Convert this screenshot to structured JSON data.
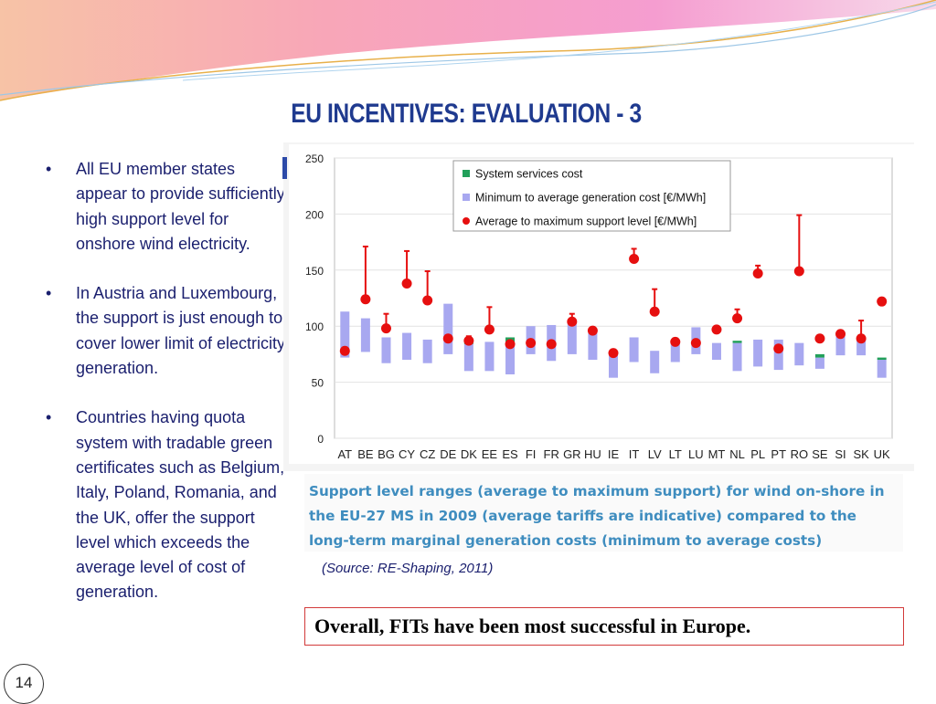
{
  "slide": {
    "title": "EU INCENTIVES: EVALUATION - 3",
    "bullets": [
      "All EU member states appear to provide sufficiently high support level for onshore wind electricity.",
      "In Austria and Luxembourg, the support is just enough to cover lower limit of electricity generation.",
      "Countries having quota system with tradable green certificates such as Belgium, Italy, Poland, Romania, and the UK, offer the support level which exceeds the average level of cost of generation."
    ],
    "bullet_symbol": "•",
    "caption": "Support level ranges (average to maximum support) for wind on-shore in the EU-27 MS in 2009 (average tariffs are indicative) compared to the long-term marginal generation costs (minimum to average costs)",
    "source": "(Source: RE-Shaping, 2011)",
    "conclusion": "Overall, FITs have been most successful in Europe.",
    "page_number": "14"
  },
  "colors": {
    "title": "#1f3a8f",
    "text": "#1a1f6e",
    "caption": "#3f8dbf",
    "cost_bar": "#a8a8f0",
    "support": "#e60f0f",
    "services": "#22a05a",
    "conclusion_border": "#d23a3a"
  },
  "chart_data": {
    "type": "bar",
    "title": "",
    "xlabel": "",
    "ylabel": "",
    "ylim": [
      0,
      250
    ],
    "yticks": [
      0,
      50,
      100,
      150,
      200,
      250
    ],
    "grid": true,
    "legend_position": "top-right",
    "categories": [
      "AT",
      "BE",
      "BG",
      "CY",
      "CZ",
      "DE",
      "DK",
      "EE",
      "ES",
      "FI",
      "FR",
      "GR",
      "HU",
      "IE",
      "IT",
      "LV",
      "LT",
      "LU",
      "MT",
      "NL",
      "PL",
      "PT",
      "RO",
      "SE",
      "SI",
      "SK",
      "UK"
    ],
    "series": [
      {
        "name": "System services cost",
        "type": "bar",
        "values": [
          null,
          null,
          null,
          null,
          null,
          null,
          2,
          null,
          4,
          null,
          null,
          null,
          null,
          null,
          null,
          null,
          null,
          null,
          null,
          2,
          null,
          null,
          null,
          3,
          null,
          null,
          2
        ]
      },
      {
        "name": "Minimum to average generation cost [€/MWh]",
        "type": "range",
        "values": [
          [
            72,
            113
          ],
          [
            77,
            107
          ],
          [
            67,
            90
          ],
          [
            70,
            94
          ],
          [
            67,
            88
          ],
          [
            75,
            120
          ],
          [
            60,
            84
          ],
          [
            60,
            86
          ],
          [
            57,
            86
          ],
          [
            75,
            100
          ],
          [
            69,
            101
          ],
          [
            75,
            105
          ],
          [
            70,
            95
          ],
          [
            54,
            76
          ],
          [
            68,
            90
          ],
          [
            58,
            78
          ],
          [
            68,
            85
          ],
          [
            75,
            99
          ],
          [
            70,
            85
          ],
          [
            60,
            85
          ],
          [
            64,
            88
          ],
          [
            61,
            88
          ],
          [
            65,
            85
          ],
          [
            62,
            72
          ],
          [
            74,
            95
          ],
          [
            74,
            90
          ],
          [
            54,
            70
          ]
        ]
      },
      {
        "name": "Average to maximum support level [€/MWh]",
        "type": "range_marker",
        "values": [
          [
            78,
            78
          ],
          [
            124,
            171
          ],
          [
            98,
            111
          ],
          [
            138,
            167
          ],
          [
            123,
            149
          ],
          [
            89,
            89
          ],
          [
            87,
            91
          ],
          [
            97,
            117
          ],
          [
            84,
            84
          ],
          [
            85,
            85
          ],
          [
            84,
            84
          ],
          [
            104,
            111
          ],
          [
            96,
            96
          ],
          [
            76,
            76
          ],
          [
            160,
            169
          ],
          [
            113,
            133
          ],
          [
            86,
            86
          ],
          [
            85,
            85
          ],
          [
            97,
            97
          ],
          [
            107,
            115
          ],
          [
            147,
            154
          ],
          [
            80,
            80
          ],
          [
            149,
            199
          ],
          [
            89,
            89
          ],
          [
            93,
            93
          ],
          [
            89,
            105
          ],
          [
            122,
            122
          ]
        ]
      }
    ]
  }
}
